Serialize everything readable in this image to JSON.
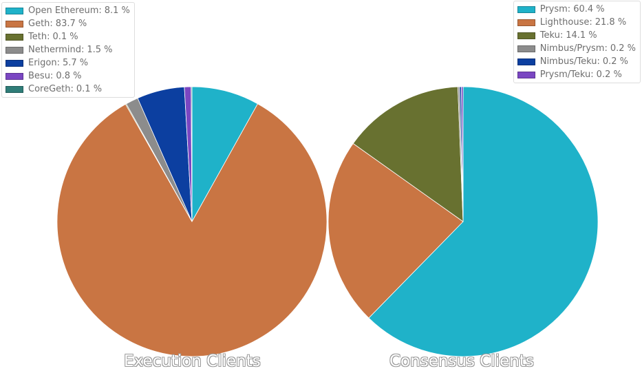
{
  "chart_data": [
    {
      "type": "pie",
      "title": "Execution Clients",
      "legend_position": "top-left",
      "unit": "%",
      "series": [
        {
          "name": "Open Ethereum",
          "label_value": "8.1 %",
          "value": 8.1,
          "color": "#1fb2c9"
        },
        {
          "name": "Geth",
          "label_value": "83.7 %",
          "value": 83.7,
          "color": "#c97543"
        },
        {
          "name": "Teth",
          "label_value": "0.1 %",
          "value": 0.1,
          "color": "#687130"
        },
        {
          "name": "Nethermind",
          "label_value": "1.5 %",
          "value": 1.5,
          "color": "#8c8c8c"
        },
        {
          "name": "Erigon",
          "label_value": "5.7 %",
          "value": 5.7,
          "color": "#0c3fa0"
        },
        {
          "name": "Besu",
          "label_value": "0.8 %",
          "value": 0.8,
          "color": "#7a46c2"
        },
        {
          "name": "CoreGeth",
          "label_value": "0.1 %",
          "value": 0.1,
          "color": "#2f7d78"
        }
      ]
    },
    {
      "type": "pie",
      "title": "Consensus Clients",
      "legend_position": "top-right",
      "unit": "%",
      "series": [
        {
          "name": "Prysm",
          "label_value": "60.4 %",
          "value": 60.4,
          "color": "#1fb2c9"
        },
        {
          "name": "Lighthouse",
          "label_value": "21.8 %",
          "value": 21.8,
          "color": "#c97543"
        },
        {
          "name": "Teku",
          "label_value": "14.1 %",
          "value": 14.1,
          "color": "#687130"
        },
        {
          "name": "Nimbus/Prysm",
          "label_value": "0.2 %",
          "value": 0.2,
          "color": "#8c8c8c"
        },
        {
          "name": "Nimbus/Teku",
          "label_value": "0.2 %",
          "value": 0.2,
          "color": "#0c3fa0"
        },
        {
          "name": "Prysm/Teku",
          "label_value": "0.2 %",
          "value": 0.2,
          "color": "#7a46c2"
        }
      ]
    }
  ]
}
